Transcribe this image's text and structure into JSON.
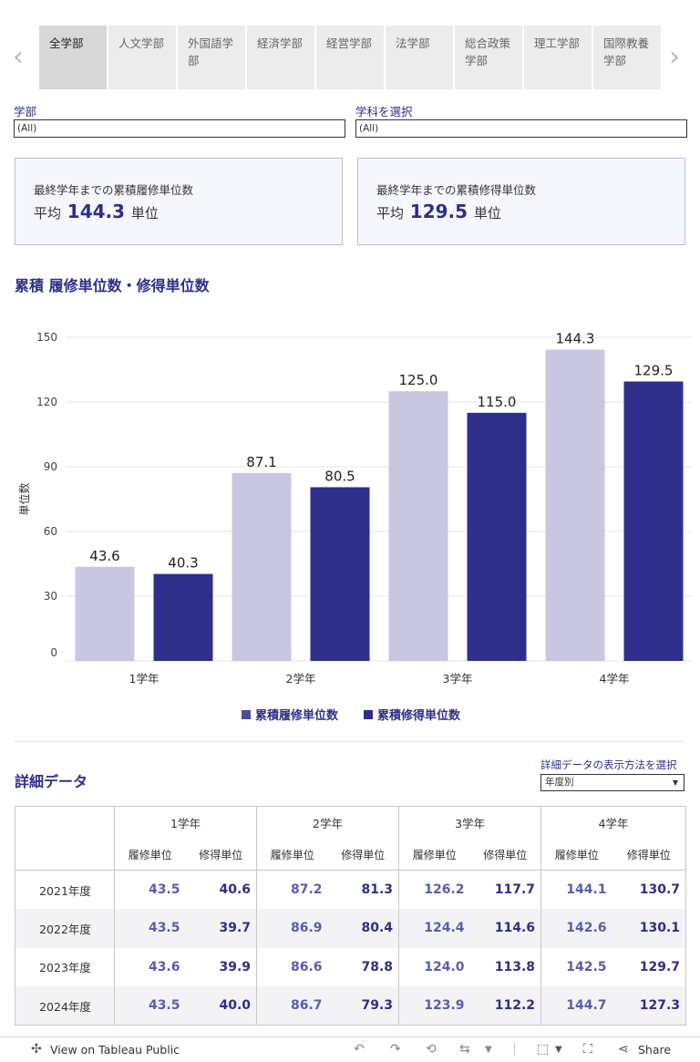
{
  "tabs": [
    "全学部",
    "人文学部",
    "外国語学部",
    "経済学部",
    "経営学部",
    "法学部",
    "総合政策学部",
    "理工学部",
    "国際教養学部"
  ],
  "nav": {
    "prev": "‹",
    "next": "›"
  },
  "filters": {
    "faculty": {
      "label": "学部",
      "value": "(All)"
    },
    "department": {
      "label": "学科を選択",
      "value": "(All)"
    }
  },
  "kpis": [
    {
      "label": "最終学年までの累積履修単位数",
      "prefix": "平均",
      "value": "144.3",
      "unit": "単位"
    },
    {
      "label": "最終学年までの累積修得単位数",
      "prefix": "平均",
      "value": "129.5",
      "unit": "単位"
    }
  ],
  "chart_title": "累積 履修単位数・修得単位数",
  "chart_data": {
    "type": "bar",
    "title": "累積 履修単位数・修得単位数",
    "categories": [
      "1学年",
      "2学年",
      "3学年",
      "4学年"
    ],
    "series": [
      {
        "name": "累積履修単位数",
        "values": [
          43.6,
          87.1,
          125.0,
          144.3
        ],
        "color": "#c8c6e1"
      },
      {
        "name": "累積修得単位数",
        "values": [
          40.3,
          80.5,
          115.0,
          129.5
        ],
        "color": "#2e2f8a"
      }
    ],
    "xlabel": "",
    "ylabel": "単位数",
    "ylim": [
      0,
      150
    ],
    "yticks": [
      0,
      30,
      60,
      90,
      120,
      150
    ],
    "grid": true,
    "legend": "bottom-center"
  },
  "detail": {
    "title": "詳細データ",
    "view_label": "詳細データの表示方法を選択",
    "view_value": "年度別",
    "years_header": [
      "1学年",
      "2学年",
      "3学年",
      "4学年"
    ],
    "sub_headers": [
      "履修単位",
      "修得単位"
    ],
    "rows": [
      {
        "year": "2021年度",
        "values": [
          "43.5",
          "40.6",
          "87.2",
          "81.3",
          "126.2",
          "117.7",
          "144.1",
          "130.7"
        ]
      },
      {
        "year": "2022年度",
        "values": [
          "43.5",
          "39.7",
          "86.9",
          "80.4",
          "124.4",
          "114.6",
          "142.6",
          "130.1"
        ]
      },
      {
        "year": "2023年度",
        "values": [
          "43.6",
          "39.9",
          "86.6",
          "78.8",
          "124.0",
          "113.8",
          "142.5",
          "129.7"
        ]
      },
      {
        "year": "2024年度",
        "values": [
          "43.5",
          "40.0",
          "86.7",
          "79.3",
          "123.9",
          "112.2",
          "144.7",
          "127.3"
        ]
      }
    ]
  },
  "footer": {
    "view_label": "View on Tableau Public",
    "share_label": "Share"
  },
  "icons": [
    "tableau-logo-icon",
    "undo-icon",
    "redo-icon",
    "revert-icon",
    "refresh-icon",
    "download-icon",
    "fullscreen-icon",
    "share-icon"
  ]
}
